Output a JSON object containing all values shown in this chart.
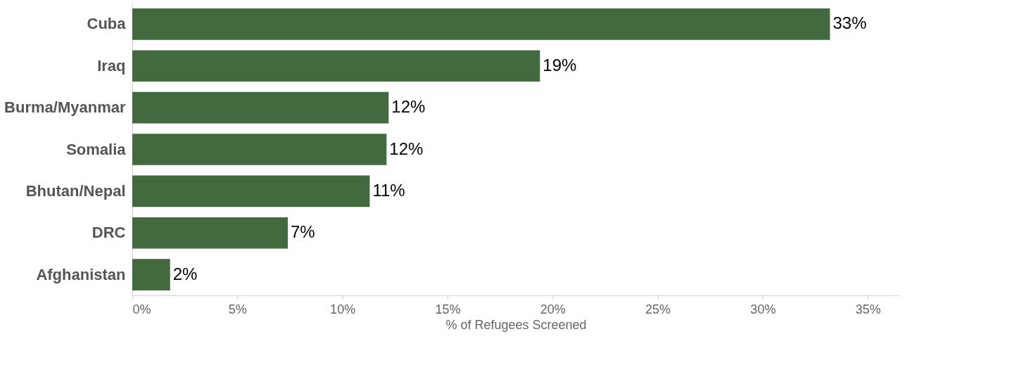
{
  "chart_data": {
    "type": "bar",
    "orientation": "horizontal",
    "xlabel": "% of Refugees Screened",
    "categories": [
      "Cuba",
      "Iraq",
      "Burma/Myanmar",
      "Somalia",
      "Bhutan/Nepal",
      "DRC",
      "Afghanistan"
    ],
    "values": [
      33.2,
      19.4,
      12.2,
      12.1,
      11.3,
      7.4,
      1.8
    ],
    "value_labels": [
      "33%",
      "19%",
      "12%",
      "12%",
      "11%",
      "7%",
      "2%"
    ],
    "color": "#436a3f",
    "xlim": [
      0,
      36.5
    ],
    "xticks": [
      {
        "value": 0,
        "label": "0%"
      },
      {
        "value": 5,
        "label": "5%"
      },
      {
        "value": 10,
        "label": "10%"
      },
      {
        "value": 15,
        "label": "15%"
      },
      {
        "value": 20,
        "label": "20%"
      },
      {
        "value": 25,
        "label": "25%"
      },
      {
        "value": 30,
        "label": "30%"
      },
      {
        "value": 35,
        "label": "35%"
      }
    ],
    "grid": false
  }
}
